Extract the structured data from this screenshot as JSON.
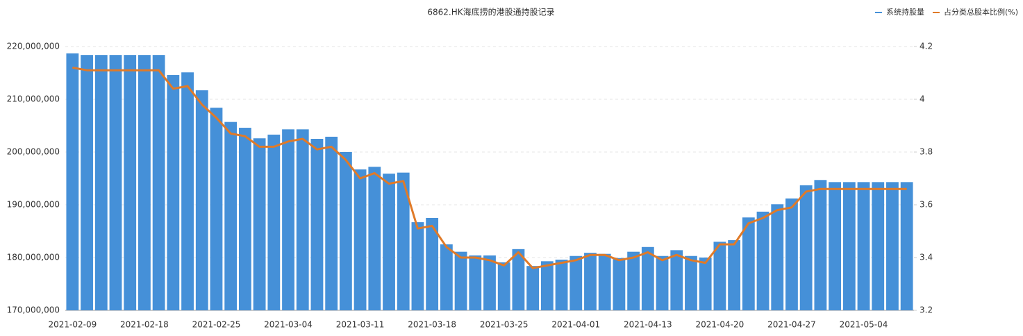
{
  "chart_data": {
    "type": "bar-line",
    "title": "6862.HK海底捞的港股通持股记录",
    "categories": [
      "2021-02-09",
      null,
      null,
      null,
      null,
      "2021-02-18",
      null,
      null,
      null,
      null,
      "2021-02-25",
      null,
      null,
      null,
      null,
      "2021-03-04",
      null,
      null,
      null,
      null,
      "2021-03-11",
      null,
      null,
      null,
      null,
      "2021-03-18",
      null,
      null,
      null,
      null,
      "2021-03-25",
      null,
      null,
      null,
      null,
      "2021-04-01",
      null,
      null,
      null,
      null,
      "2021-04-13",
      null,
      null,
      null,
      null,
      "2021-04-20",
      null,
      null,
      null,
      null,
      "2021-04-27",
      null,
      null,
      null,
      null,
      "2021-05-04",
      null,
      null,
      null
    ],
    "series": [
      {
        "name": "系统持股量",
        "color": "#4590d8",
        "type": "bar",
        "values": [
          218700000,
          218400000,
          218400000,
          218400000,
          218400000,
          218400000,
          218400000,
          214600000,
          215100000,
          211700000,
          208400000,
          205700000,
          204600000,
          202600000,
          203300000,
          204300000,
          204300000,
          202500000,
          202900000,
          200000000,
          196700000,
          197200000,
          195900000,
          196100000,
          186700000,
          187500000,
          182500000,
          181100000,
          180400000,
          180400000,
          179100000,
          181600000,
          178400000,
          179300000,
          179600000,
          180300000,
          180900000,
          180700000,
          179900000,
          181100000,
          182000000,
          180300000,
          181400000,
          180300000,
          180000000,
          183000000,
          183300000,
          187600000,
          188700000,
          190100000,
          191200000,
          193700000,
          194700000,
          194300000,
          194300000,
          194300000,
          194300000,
          194300000,
          194300000
        ]
      },
      {
        "name": "占分类总股本比例(%)",
        "color": "#e07a28",
        "type": "line",
        "axis": "y2",
        "values": [
          4.12,
          4.11,
          4.11,
          4.11,
          4.11,
          4.11,
          4.11,
          4.04,
          4.05,
          3.98,
          3.93,
          3.87,
          3.86,
          3.82,
          3.82,
          3.84,
          3.85,
          3.81,
          3.82,
          3.77,
          3.7,
          3.72,
          3.68,
          3.69,
          3.51,
          3.52,
          3.44,
          3.4,
          3.4,
          3.39,
          3.37,
          3.42,
          3.36,
          3.37,
          3.38,
          3.39,
          3.41,
          3.41,
          3.39,
          3.4,
          3.42,
          3.39,
          3.41,
          3.39,
          3.38,
          3.45,
          3.45,
          3.53,
          3.55,
          3.58,
          3.59,
          3.65,
          3.66,
          3.66,
          3.66,
          3.66,
          3.66,
          3.66,
          3.66
        ]
      }
    ],
    "ylim": [
      170000000,
      220000000
    ],
    "yticks": [
      {
        "value": 170000000,
        "label": "170,000,000"
      },
      {
        "value": 180000000,
        "label": "180,000,000"
      },
      {
        "value": 190000000,
        "label": "190,000,000"
      },
      {
        "value": 200000000,
        "label": "200,000,000"
      },
      {
        "value": 210000000,
        "label": "210,000,000"
      },
      {
        "value": 220000000,
        "label": "220,000,000"
      }
    ],
    "y2lim": [
      3.2,
      4.2
    ],
    "y2ticks": [
      3.2,
      3.4,
      3.6,
      3.8,
      4,
      4.2
    ],
    "grid": true,
    "legend": "top-right"
  }
}
